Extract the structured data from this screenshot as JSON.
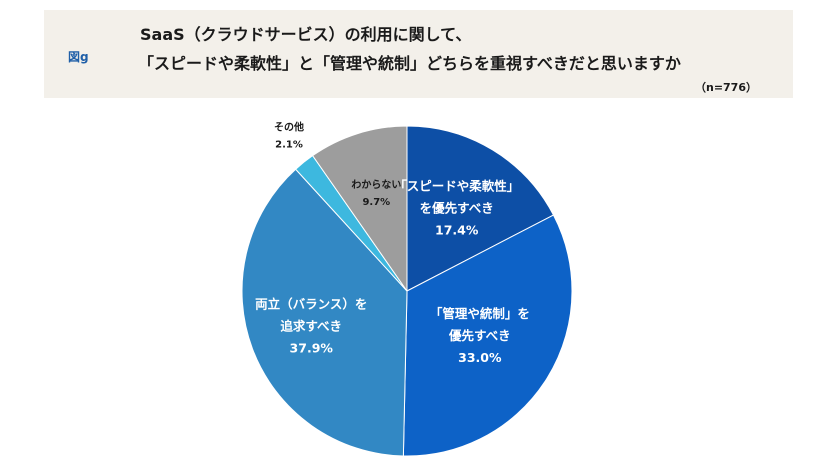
{
  "figure_label": "図g",
  "title_line1": "SaaS（クラウドサービス）の利用に関して、",
  "title_line2": "「スピードや柔軟性」と「管理や統制」どちらを重視すべきだと思いますか",
  "sample_size": "（n=776）",
  "chart_data": {
    "type": "pie",
    "title": "SaaS（クラウドサービス）の利用に関して、「スピードや柔軟性」と「管理や統制」どちらを重視すべきだと思いますか",
    "start": "12 o'clock, clockwise",
    "slices": [
      {
        "label_lines": [
          "「スピードや柔軟性」",
          "を優先すべき"
        ],
        "value": 17.4,
        "value_label": "17.4%",
        "color": "#0d4fa6"
      },
      {
        "label_lines": [
          "「管理や統制」を",
          "優先すべき"
        ],
        "value": 33.0,
        "value_label": "33.0%",
        "color": "#0d62c7"
      },
      {
        "label_lines": [
          "両立（バランス）を",
          "追求すべき"
        ],
        "value": 37.9,
        "value_label": "37.9%",
        "color": "#3288c4"
      },
      {
        "label_lines": [
          "その他"
        ],
        "value": 2.1,
        "value_label": "2.1%",
        "color": "#3db8df"
      },
      {
        "label_lines": [
          "わからない"
        ],
        "value": 9.7,
        "value_label": "9.7%",
        "color": "#9d9d9d"
      }
    ]
  }
}
